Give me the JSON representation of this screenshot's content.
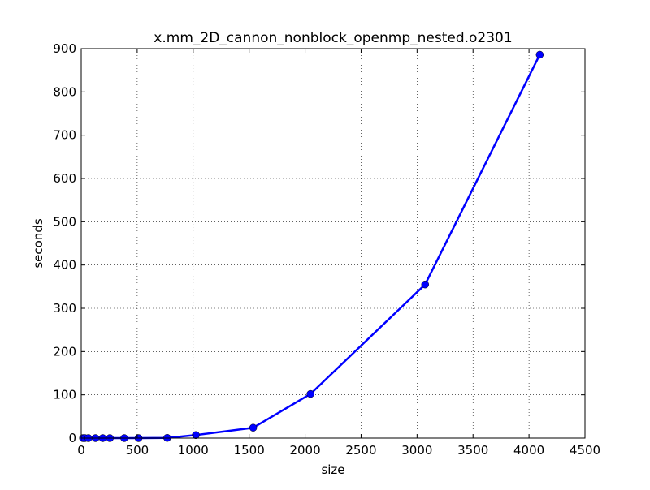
{
  "chart_data": {
    "type": "line",
    "title": "x.mm_2D_cannon_nonblock_openmp_nested.o2301",
    "xlabel": "size",
    "ylabel": "seconds",
    "xlim": [
      0,
      4500
    ],
    "ylim": [
      0,
      900
    ],
    "xticks": [
      0,
      500,
      1000,
      1500,
      2000,
      2500,
      3000,
      3500,
      4000,
      4500
    ],
    "yticks": [
      0,
      100,
      200,
      300,
      400,
      500,
      600,
      700,
      800,
      900
    ],
    "grid": true,
    "series": [
      {
        "color": "#0000ff",
        "marker": "circle",
        "x": [
          16,
          32,
          64,
          128,
          192,
          256,
          384,
          512,
          768,
          1024,
          1536,
          2048,
          3072,
          4096
        ],
        "y": [
          0,
          0,
          0,
          0,
          0,
          0,
          0,
          0,
          0.5,
          7,
          24,
          102,
          355,
          886
        ]
      }
    ]
  }
}
